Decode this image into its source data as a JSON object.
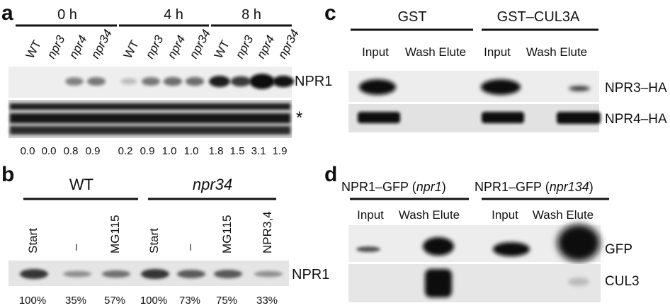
{
  "panels": {
    "a": {
      "letter": "a",
      "timepoints": [
        "0 h",
        "4 h",
        "8 h"
      ],
      "lanes": [
        "WT",
        "npr3",
        "npr4",
        "npr34",
        "WT",
        "npr3",
        "npr4",
        "npr34",
        "WT",
        "npr3",
        "npr4",
        "npr34"
      ],
      "blot_label": "NPR1",
      "loading_marker": "*",
      "quant": [
        "0.0",
        "0.0",
        "0.8",
        "0.9",
        "0.2",
        "0.9",
        "1.0",
        "1.0",
        "1.8",
        "1.5",
        "3.1",
        "1.9"
      ]
    },
    "b": {
      "letter": "b",
      "groups": [
        "WT",
        "npr34"
      ],
      "lanes": [
        "Start",
        "–",
        "MG115",
        "Start",
        "–",
        "MG115",
        "NPR3,4"
      ],
      "blot_label": "NPR1",
      "quant": [
        "100%",
        "35%",
        "57%",
        "100%",
        "73%",
        "75%",
        "33%"
      ]
    },
    "c": {
      "letter": "c",
      "groups": [
        "GST",
        "GST–CUL3A"
      ],
      "col_labels": [
        "Input",
        "Wash Elute",
        "Input",
        "Wash Elute"
      ],
      "blot_labels": [
        "NPR3–HA",
        "NPR4–HA"
      ]
    },
    "d": {
      "letter": "d",
      "group1_prefix": "NPR1–GFP (",
      "group1_genotype": "npr1",
      "group1_suffix": ")",
      "group2_prefix": "NPR1–GFP (",
      "group2_genotype": "npr134",
      "group2_suffix": ")",
      "col_labels": [
        "Input",
        "Wash Elute",
        "Input",
        "Wash Elute"
      ],
      "blot_labels": [
        "GFP",
        "CUL3"
      ]
    }
  }
}
